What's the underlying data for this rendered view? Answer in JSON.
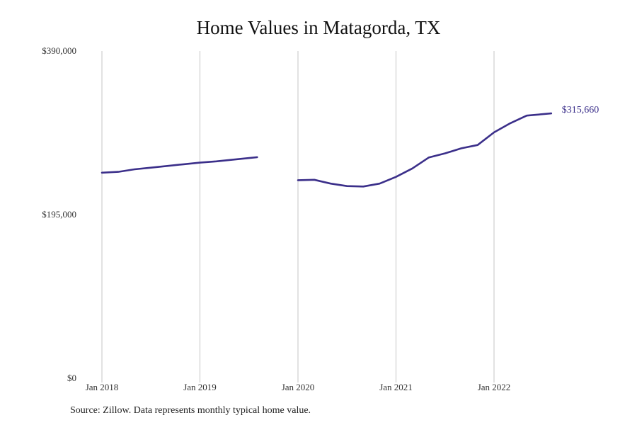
{
  "chart_data": {
    "type": "line",
    "title": "Home Values in Matagorda, TX",
    "source": "Source: Zillow. Data represents monthly typical home value.",
    "xlabel": "",
    "ylabel": "",
    "ylim": [
      0,
      390000
    ],
    "y_ticks": [
      {
        "value": 0,
        "label": "$0"
      },
      {
        "value": 195000,
        "label": "$195,000"
      },
      {
        "value": 390000,
        "label": "$390,000"
      }
    ],
    "x_ticks": [
      {
        "value": "2018-01",
        "label": "Jan 2018"
      },
      {
        "value": "2019-01",
        "label": "Jan 2019"
      },
      {
        "value": "2020-01",
        "label": "Jan 2020"
      },
      {
        "value": "2021-01",
        "label": "Jan 2021"
      },
      {
        "value": "2022-01",
        "label": "Jan 2022"
      }
    ],
    "grid": "vertical",
    "color": "#3b2f8a",
    "end_label": "$315,660",
    "series": [
      {
        "x": [
          "2018-01",
          "2018-03",
          "2018-05",
          "2018-07",
          "2018-09",
          "2018-11",
          "2019-01",
          "2019-03",
          "2019-05",
          "2019-08",
          "2020-01",
          "2020-03",
          "2020-05",
          "2020-07",
          "2020-09",
          "2020-11",
          "2021-01",
          "2021-03",
          "2021-05",
          "2021-07",
          "2021-09",
          "2021-11",
          "2022-01",
          "2022-03",
          "2022-05",
          "2022-08"
        ],
        "y": [
          245000,
          246000,
          249000,
          251000,
          253000,
          255000,
          257000,
          258500,
          260500,
          263500,
          236000,
          236500,
          232000,
          229000,
          228500,
          232000,
          240000,
          250000,
          263000,
          268000,
          274000,
          278000,
          293000,
          304000,
          313000,
          315660
        ]
      }
    ]
  }
}
